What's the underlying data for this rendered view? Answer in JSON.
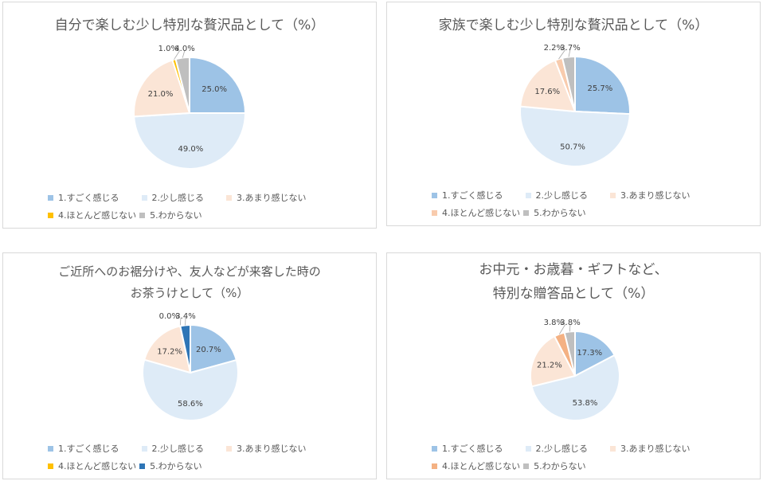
{
  "colors": {
    "c1": "#9dc3e6",
    "c2": "#deebf7",
    "c3": "#fbe5d6",
    "c4_yellow": "#ffc000",
    "c4_orange": "#f4b183",
    "c5_gray": "#bfbfbf",
    "c5_blue": "#2e75b6",
    "c4_tan": "#f8cbad"
  },
  "chart_data": [
    {
      "type": "pie",
      "title": [
        "自分で楽しむ少し特別な贅沢品として（%）"
      ],
      "categories": [
        "1.すごく感じる",
        "2.少し感じる",
        "3.あまり感じない",
        "4.ほとんど感じない",
        "5.わからない"
      ],
      "values": [
        25.0,
        49.0,
        21.0,
        1.0,
        4.0
      ],
      "labels": [
        "25.0%",
        "49.0%",
        "21.0%",
        "1.0%",
        "4.0%"
      ],
      "colors": [
        "#9dc3e6",
        "#deebf7",
        "#fbe5d6",
        "#ffc000",
        "#bfbfbf"
      ],
      "legend": "bottom"
    },
    {
      "type": "pie",
      "title": [
        "家族で楽しむ少し特別な贅沢品として（%）"
      ],
      "categories": [
        "1.すごく感じる",
        "2.少し感じる",
        "3.あまり感じない",
        "4.ほとんど感じない",
        "5.わからない"
      ],
      "values": [
        25.7,
        50.7,
        17.6,
        2.2,
        3.7
      ],
      "labels": [
        "25.7%",
        "50.7%",
        "17.6%",
        "2.2%",
        "3.7%"
      ],
      "colors": [
        "#9dc3e6",
        "#deebf7",
        "#fbe5d6",
        "#f8cbad",
        "#bfbfbf"
      ],
      "legend": "bottom"
    },
    {
      "type": "pie",
      "title": [
        "ご近所へのお裾分けや、友人などが来客した時の",
        "お茶うけとして（%）"
      ],
      "categories": [
        "1.すごく感じる",
        "2.少し感じる",
        "3.あまり感じない",
        "4.ほとんど感じない",
        "5.わからない"
      ],
      "values": [
        20.7,
        58.6,
        17.2,
        0.0,
        3.4
      ],
      "labels": [
        "20.7%",
        "58.6%",
        "17.2%",
        "0.0%",
        "3.4%"
      ],
      "colors": [
        "#9dc3e6",
        "#deebf7",
        "#fbe5d6",
        "#ffc000",
        "#2e75b6"
      ],
      "legend": "bottom"
    },
    {
      "type": "pie",
      "title": [
        "お中元・お歳暮・ギフトなど、",
        "特別な贈答品として（%）"
      ],
      "categories": [
        "1.すごく感じる",
        "2.少し感じる",
        "3.あまり感じない",
        "4.ほとんど感じない",
        "5.わからない"
      ],
      "values": [
        17.3,
        53.8,
        21.2,
        3.8,
        3.8
      ],
      "labels": [
        "17.3%",
        "53.8%",
        "21.2%",
        "3.8%",
        "3.8%"
      ],
      "colors": [
        "#9dc3e6",
        "#deebf7",
        "#fbe5d6",
        "#f4b183",
        "#bfbfbf"
      ],
      "legend": "bottom"
    }
  ]
}
